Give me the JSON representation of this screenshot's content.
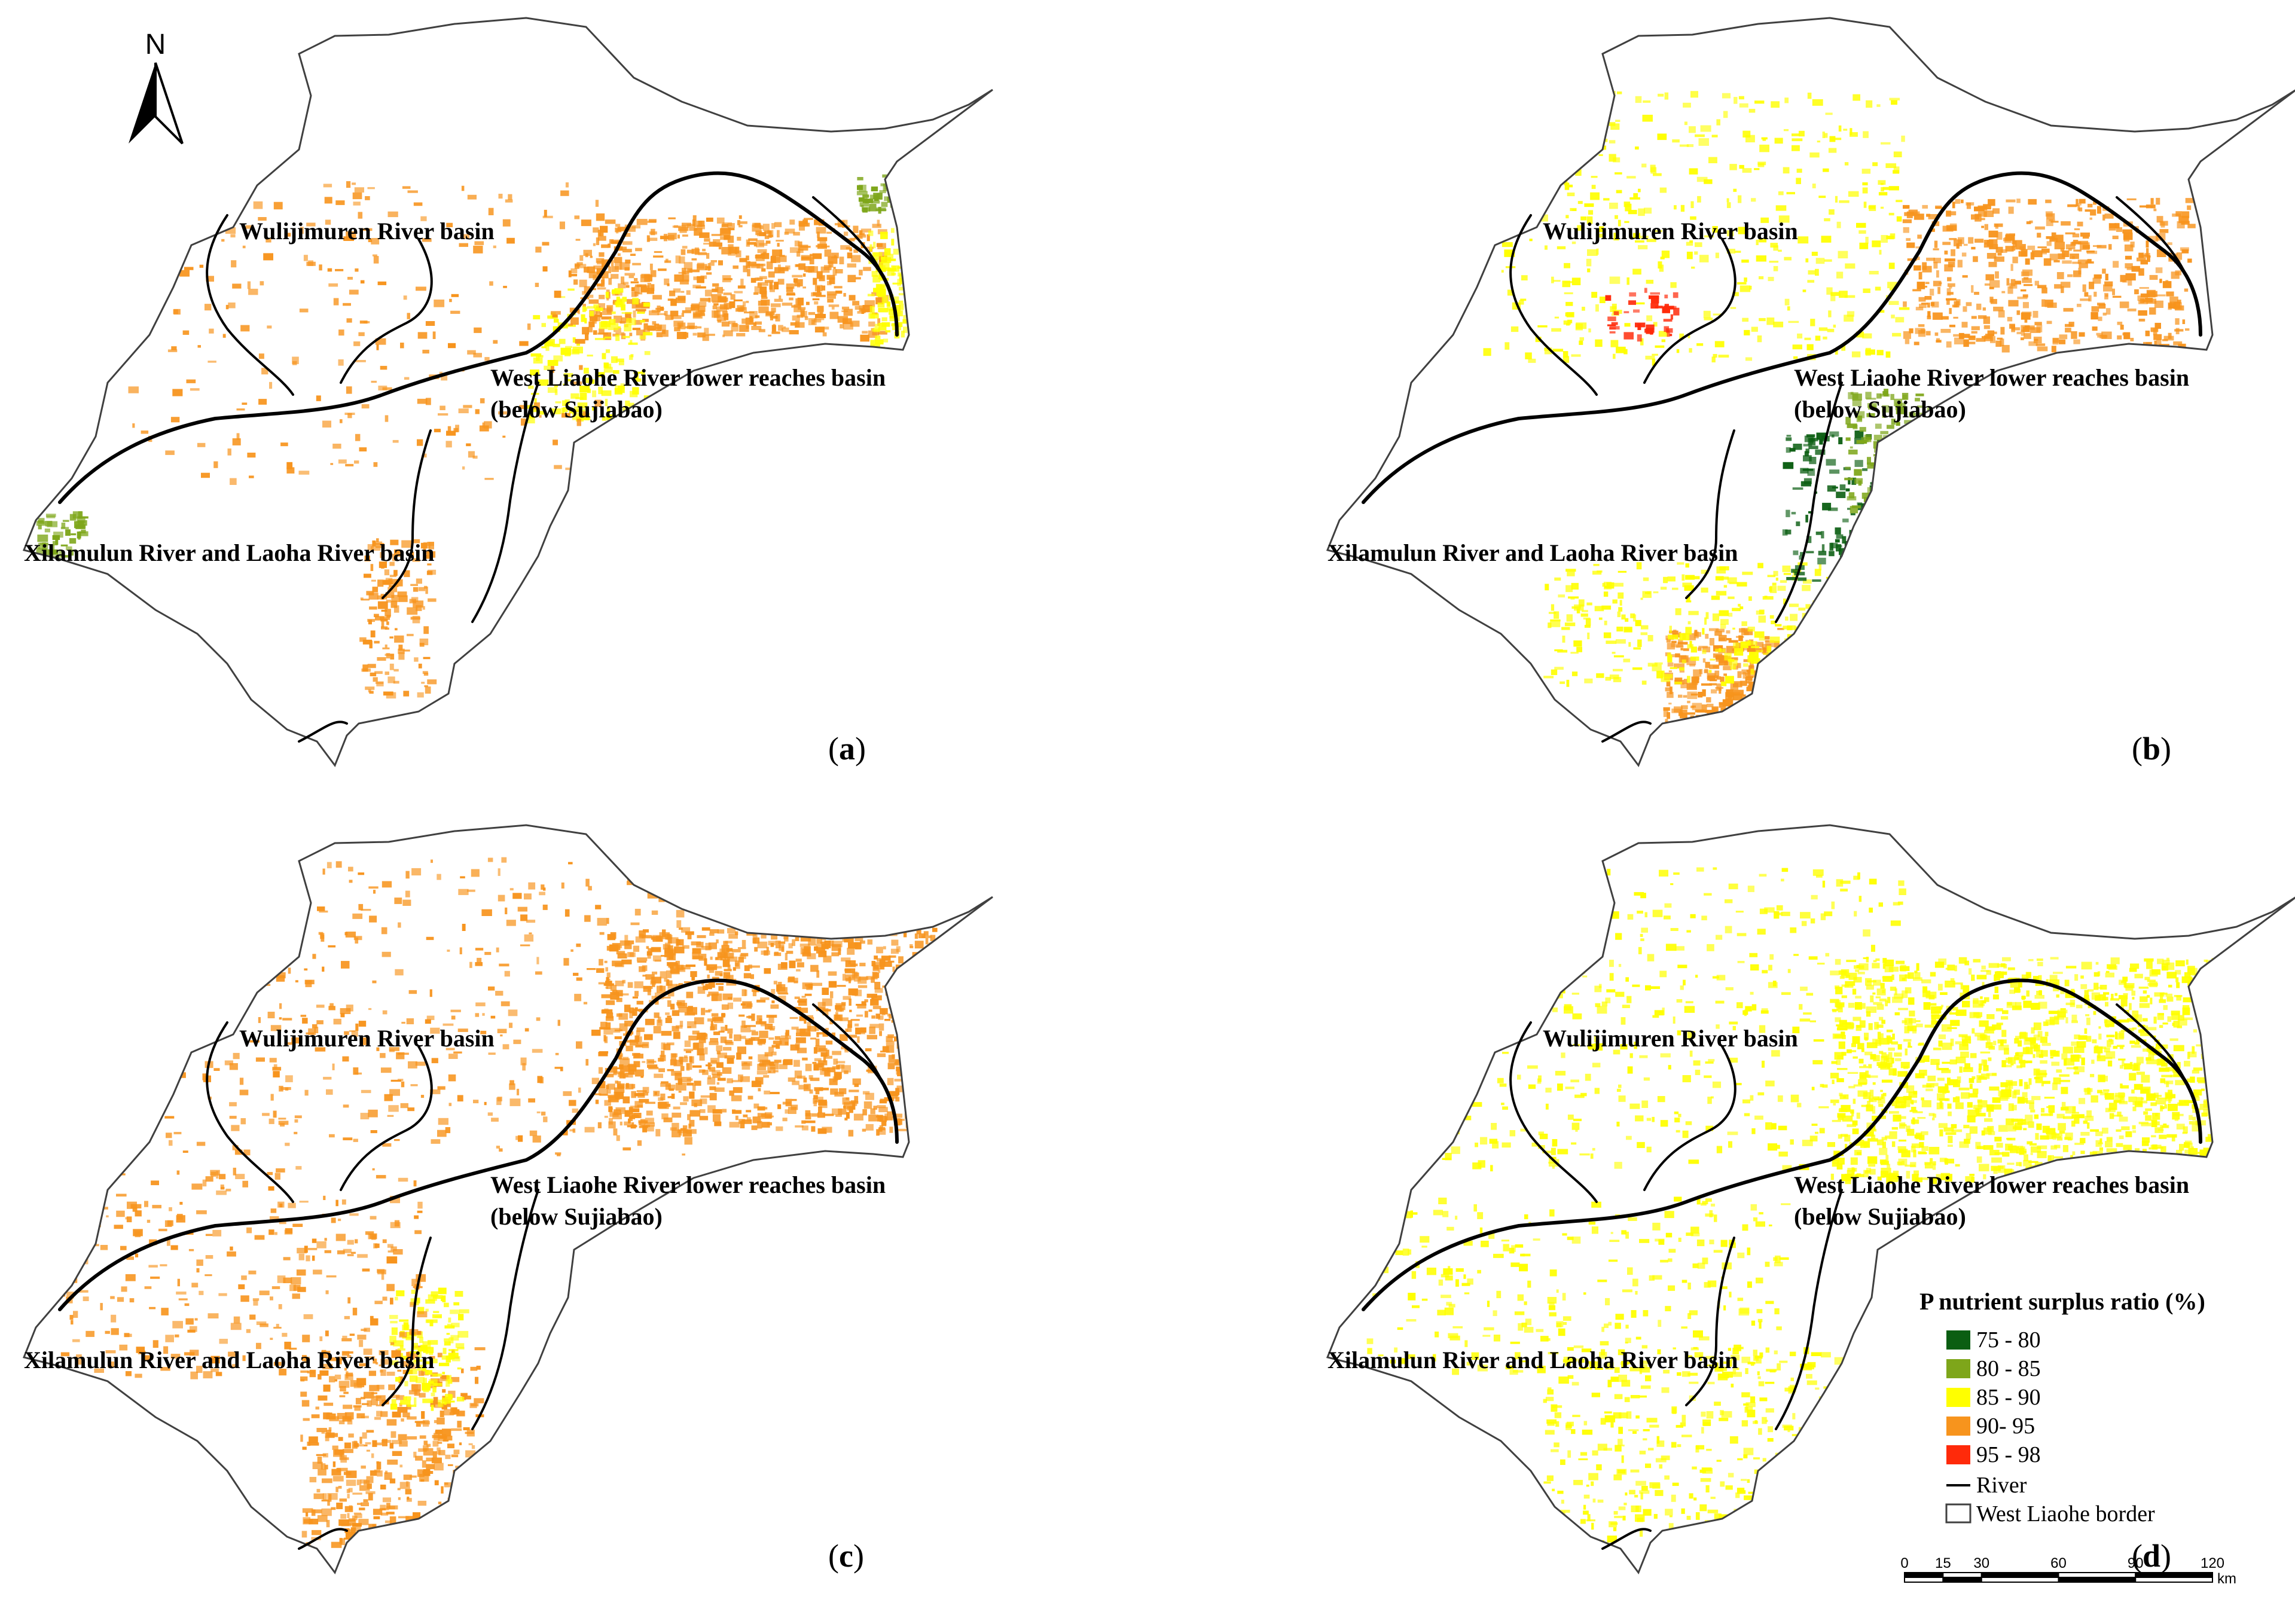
{
  "north_arrow": {
    "label": "N"
  },
  "region_labels": {
    "wulijimuren": "Wulijimuren River basin",
    "west_liaohe_line1": "West Liaohe River lower reaches basin",
    "west_liaohe_line2": "(below Sujiabao)",
    "xilamulun": "Xilamulun River and Laoha River basin"
  },
  "panels": [
    {
      "id": "a",
      "letter": "a",
      "dominant_class": "90- 95"
    },
    {
      "id": "b",
      "letter": "b",
      "dominant_class": "85 - 90"
    },
    {
      "id": "c",
      "letter": "c",
      "dominant_class": "90- 95"
    },
    {
      "id": "d",
      "letter": "d",
      "dominant_class": "85 - 90"
    }
  ],
  "legend": {
    "title": "P nutrient surplus ratio (%)",
    "classes": [
      {
        "label": "75 - 80",
        "color": "#0b5e12"
      },
      {
        "label": "80 - 85",
        "color": "#7ea61a"
      },
      {
        "label": "85 - 90",
        "color": "#ffff00"
      },
      {
        "label": "90- 95",
        "color": "#f7941d"
      },
      {
        "label": "95 - 98",
        "color": "#ff2a0a"
      }
    ],
    "river_label": "River",
    "border_label": "West Liaohe border"
  },
  "scale_bar": {
    "ticks": [
      "0",
      "15",
      "30",
      "60",
      "90",
      "120"
    ],
    "unit": "km"
  },
  "colors": {
    "river": "#000000",
    "border": "#404040",
    "orange": "#f7941d",
    "yellow": "#ffff00",
    "green": "#7ea61a",
    "dark_green": "#0b5e12",
    "red": "#ff2a0a"
  }
}
